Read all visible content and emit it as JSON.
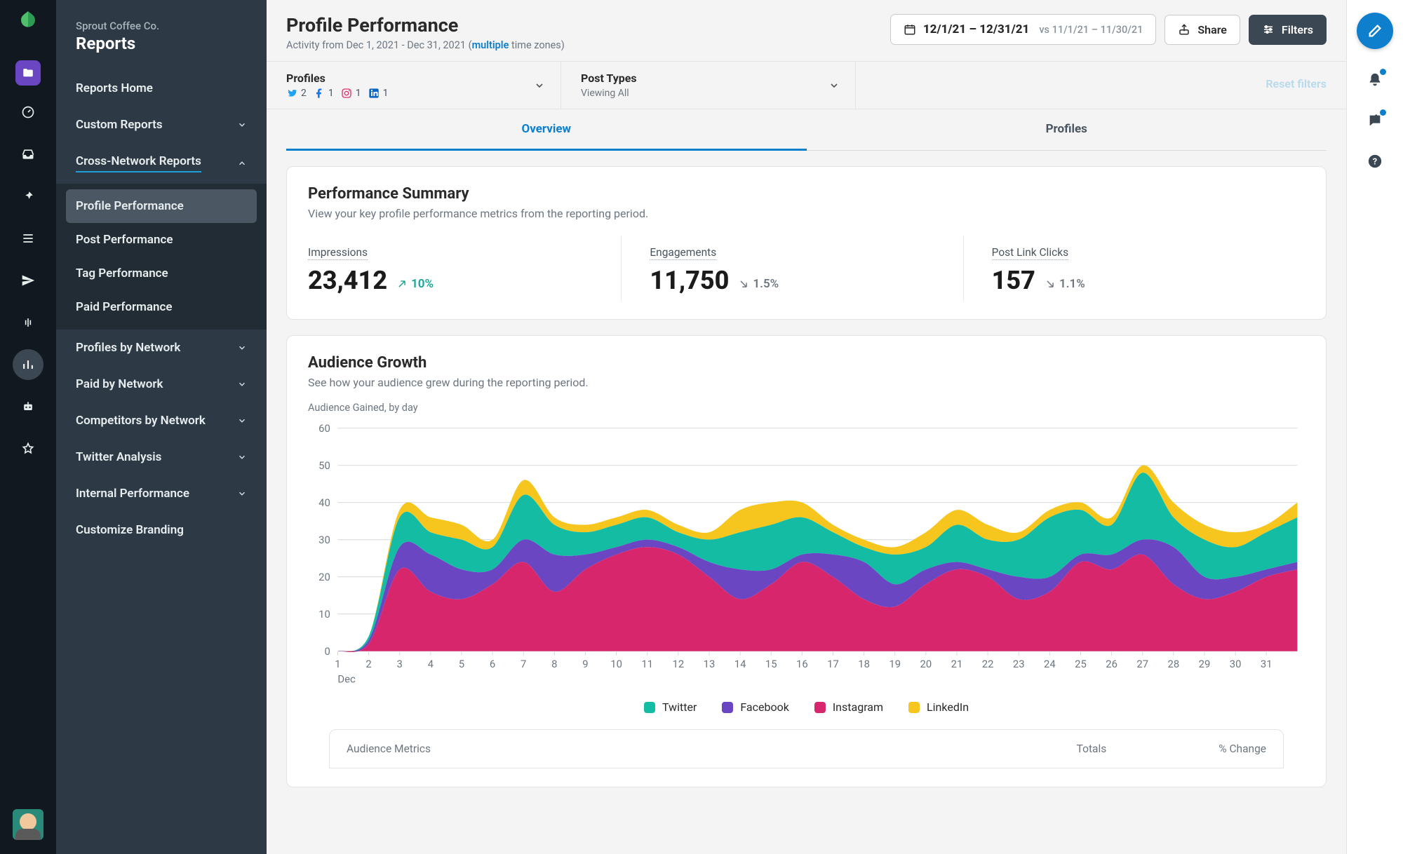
{
  "org": {
    "name": "Sprout Coffee Co.",
    "section": "Reports"
  },
  "sidebar": {
    "home": "Reports Home",
    "custom": "Custom Reports",
    "cross": "Cross-Network Reports",
    "sub": {
      "profile": "Profile Performance",
      "post": "Post Performance",
      "tag": "Tag Performance",
      "paid": "Paid Performance"
    },
    "profilesNet": "Profiles by Network",
    "paidNet": "Paid by Network",
    "competitors": "Competitors by Network",
    "twitter": "Twitter Analysis",
    "internal": "Internal Performance",
    "branding": "Customize Branding"
  },
  "header": {
    "title": "Profile Performance",
    "activity_prefix": "Activity from Dec 1, 2021 - Dec 31, 2021 (",
    "multiple": "multiple",
    "activity_suffix": " time zones)",
    "date_range": "12/1/21 – 12/31/21",
    "compare": "vs 11/1/21 – 11/30/21",
    "share": "Share",
    "filters": "Filters"
  },
  "filters": {
    "profiles": {
      "title": "Profiles",
      "tw": "2",
      "fb": "1",
      "ig": "1",
      "li": "1"
    },
    "posttypes": {
      "title": "Post Types",
      "sub": "Viewing All"
    },
    "reset": "Reset filters"
  },
  "tabs": {
    "overview": "Overview",
    "profiles": "Profiles"
  },
  "summary": {
    "title": "Performance Summary",
    "desc": "View your key profile performance metrics from the reporting period.",
    "impressions": {
      "label": "Impressions",
      "value": "23,412",
      "delta": "10%"
    },
    "engagements": {
      "label": "Engagements",
      "value": "11,750",
      "delta": "1.5%"
    },
    "clicks": {
      "label": "Post Link Clicks",
      "value": "157",
      "delta": "1.1%"
    }
  },
  "growth": {
    "title": "Audience Growth",
    "desc": "See how your audience grew during the reporting period.",
    "subtitle": "Audience Gained, by day",
    "ylabel_max": 60,
    "ytick_step": 10,
    "ylim": [
      0,
      60
    ],
    "xticks": [
      "1",
      "2",
      "3",
      "4",
      "5",
      "6",
      "7",
      "8",
      "9",
      "10",
      "11",
      "12",
      "13",
      "14",
      "15",
      "16",
      "17",
      "18",
      "19",
      "20",
      "21",
      "22",
      "23",
      "24",
      "25",
      "26",
      "27",
      "28",
      "29",
      "30",
      "31"
    ],
    "xlabel": "Dec",
    "colors": {
      "twitter": "#14bca3",
      "facebook": "#6a46c2",
      "instagram": "#d7266b",
      "linkedin": "#f6c61f",
      "grid": "#d7dbde",
      "axis_text": "#6d7680",
      "bg": "#ffffff"
    },
    "legend": {
      "twitter": "Twitter",
      "facebook": "Facebook",
      "instagram": "Instagram",
      "linkedin": "LinkedIn"
    },
    "series": {
      "instagram": [
        0,
        2,
        22,
        16,
        14,
        18,
        24,
        16,
        22,
        26,
        28,
        26,
        20,
        14,
        18,
        24,
        20,
        14,
        12,
        18,
        22,
        20,
        14,
        16,
        24,
        22,
        26,
        18,
        14,
        16,
        20,
        22
      ],
      "facebook": [
        0,
        1,
        6,
        10,
        8,
        4,
        6,
        10,
        4,
        2,
        2,
        2,
        4,
        8,
        4,
        2,
        6,
        10,
        6,
        4,
        2,
        2,
        6,
        4,
        2,
        4,
        4,
        10,
        6,
        4,
        2,
        2
      ],
      "twitter": [
        0,
        1,
        8,
        6,
        8,
        6,
        12,
        8,
        6,
        6,
        6,
        4,
        6,
        10,
        12,
        10,
        6,
        4,
        8,
        6,
        10,
        8,
        10,
        16,
        12,
        8,
        18,
        8,
        10,
        8,
        10,
        12
      ],
      "linkedin": [
        0,
        0,
        2,
        4,
        4,
        2,
        4,
        2,
        2,
        2,
        2,
        2,
        2,
        6,
        6,
        4,
        2,
        2,
        2,
        4,
        4,
        4,
        2,
        2,
        2,
        2,
        2,
        4,
        4,
        4,
        2,
        4
      ]
    }
  },
  "table_stub": {
    "metrics": "Audience Metrics",
    "totals": "Totals",
    "change": "% Change"
  }
}
